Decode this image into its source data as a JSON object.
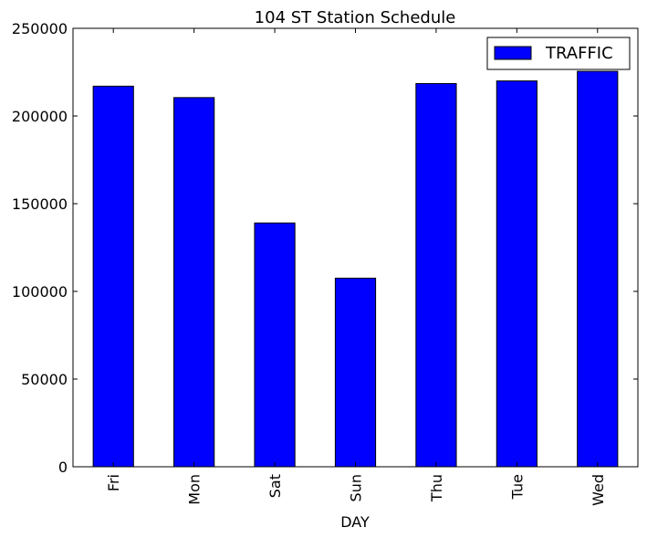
{
  "chart_data": {
    "type": "bar",
    "title": "104 ST Station Schedule",
    "xlabel": "DAY",
    "ylabel": "",
    "categories": [
      "Fri",
      "Mon",
      "Sat",
      "Sun",
      "Thu",
      "Tue",
      "Wed"
    ],
    "series": [
      {
        "name": "TRAFFIC",
        "color": "#0000ff",
        "values": [
          217000,
          210500,
          139000,
          107500,
          218500,
          220000,
          225500
        ]
      }
    ],
    "ylim": [
      0,
      250000
    ],
    "yticks": [
      0,
      50000,
      100000,
      150000,
      200000,
      250000
    ],
    "ytick_labels": [
      "0",
      "50000",
      "100000",
      "150000",
      "200000",
      "250000"
    ],
    "legend_position": "top-right",
    "grid": false
  }
}
